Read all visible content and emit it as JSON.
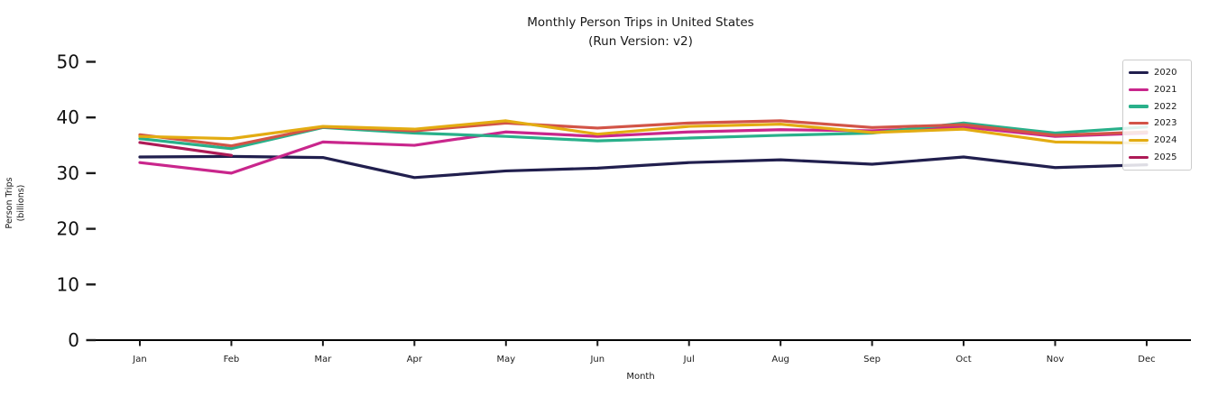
{
  "chart_data": {
    "type": "line",
    "title": "Monthly Person Trips in United States",
    "subtitle": "(Run Version: v2)",
    "xlabel": "Month",
    "ylabel_line1": "Person Trips",
    "ylabel_line2": "(billions)",
    "categories": [
      "Jan",
      "Feb",
      "Mar",
      "Apr",
      "May",
      "Jun",
      "Jul",
      "Aug",
      "Sep",
      "Oct",
      "Nov",
      "Dec"
    ],
    "yticks": [
      0,
      10,
      20,
      30,
      40,
      50
    ],
    "ylim": [
      0,
      52
    ],
    "grid": false,
    "legend_position": "upper right",
    "series": [
      {
        "name": "2020",
        "color": "#211f4e",
        "values": [
          32.9,
          33.0,
          32.8,
          29.2,
          30.4,
          30.9,
          31.9,
          32.4,
          31.6,
          32.9,
          31.0,
          31.5
        ]
      },
      {
        "name": "2021",
        "color": "#c9268c",
        "values": [
          31.9,
          30.0,
          35.6,
          35.0,
          37.4,
          36.6,
          37.4,
          37.8,
          37.6,
          38.3,
          36.6,
          37.2
        ]
      },
      {
        "name": "2022",
        "color": "#29b08a",
        "values": [
          36.2,
          34.4,
          38.2,
          37.2,
          36.6,
          35.8,
          36.3,
          36.8,
          37.2,
          39.0,
          37.2,
          38.3
        ]
      },
      {
        "name": "2023",
        "color": "#d25447",
        "values": [
          36.9,
          34.9,
          38.3,
          37.6,
          39.0,
          38.1,
          39.0,
          39.4,
          38.2,
          38.7,
          36.8,
          37.4
        ]
      },
      {
        "name": "2024",
        "color": "#e3ac12",
        "values": [
          36.6,
          36.2,
          38.4,
          37.9,
          39.4,
          37.0,
          38.4,
          38.8,
          37.3,
          37.9,
          35.6,
          35.4
        ]
      },
      {
        "name": "2025",
        "color": "#ad1a56",
        "values": [
          35.5,
          33.2
        ]
      }
    ]
  }
}
